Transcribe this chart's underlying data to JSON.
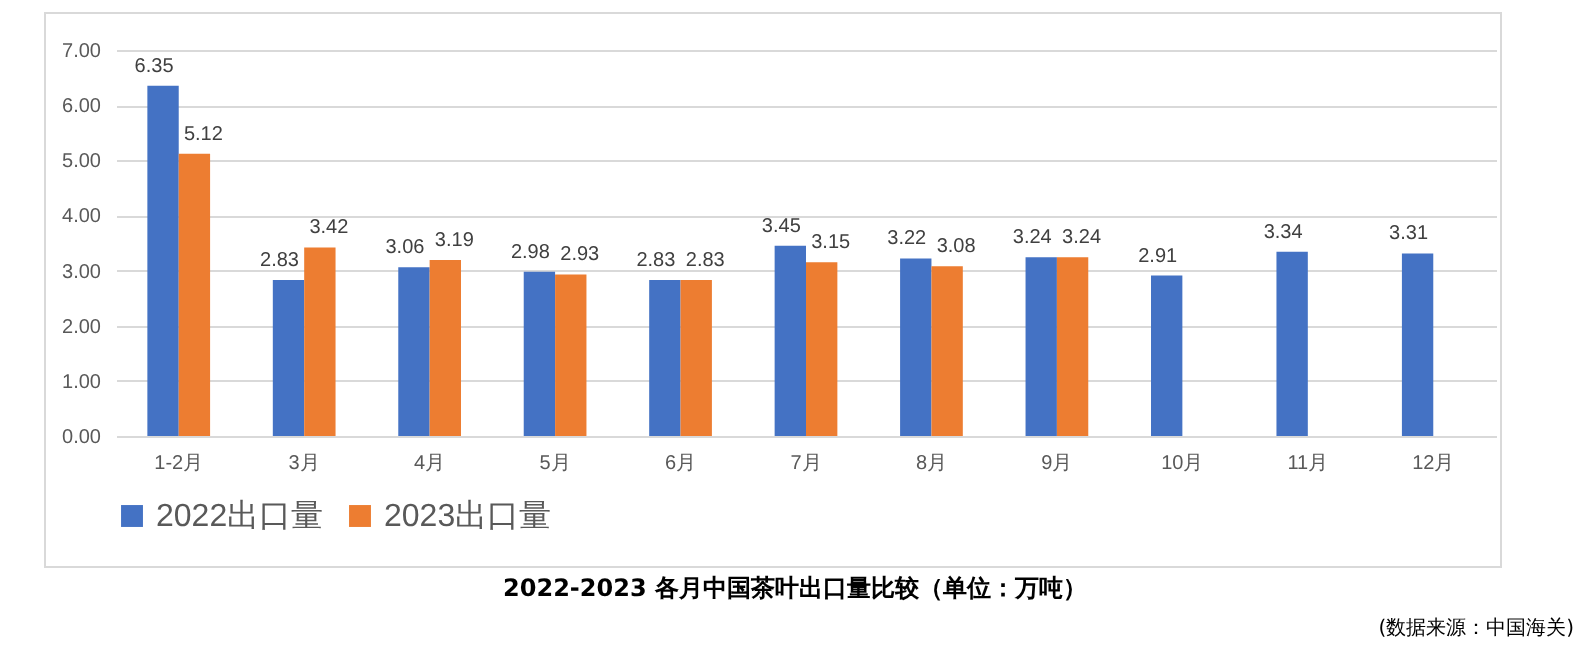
{
  "chart_data": {
    "type": "bar",
    "title": "2022-2023 各月中国茶叶出口量比较（单位：万吨）",
    "annotations": [
      "(数据来源：中国海关)"
    ],
    "categories": [
      "1-2月",
      "3月",
      "4月",
      "5月",
      "6月",
      "7月",
      "8月",
      "9月",
      "10月",
      "11月",
      "12月"
    ],
    "series": [
      {
        "name": "2022出口量",
        "color": "#4472c4",
        "values": [
          6.35,
          2.83,
          3.06,
          2.98,
          2.83,
          3.45,
          3.22,
          3.24,
          2.91,
          3.34,
          3.31
        ]
      },
      {
        "name": "2023出口量",
        "color": "#ed7d31",
        "values": [
          5.12,
          3.42,
          3.19,
          2.93,
          2.83,
          3.15,
          3.08,
          3.24,
          null,
          null,
          null
        ]
      }
    ],
    "ylim": [
      0,
      7
    ],
    "yticks": [
      {
        "value": 0,
        "label": "0.00"
      },
      {
        "value": 1,
        "label": "1.00"
      },
      {
        "value": 2,
        "label": "2.00"
      },
      {
        "value": 3,
        "label": "3.00"
      },
      {
        "value": 4,
        "label": "4.00"
      },
      {
        "value": 5,
        "label": "5.00"
      },
      {
        "value": 6,
        "label": "6.00"
      },
      {
        "value": 7,
        "label": "7.00"
      }
    ],
    "grid": "y",
    "legend": "bottom",
    "data_labels": true
  }
}
